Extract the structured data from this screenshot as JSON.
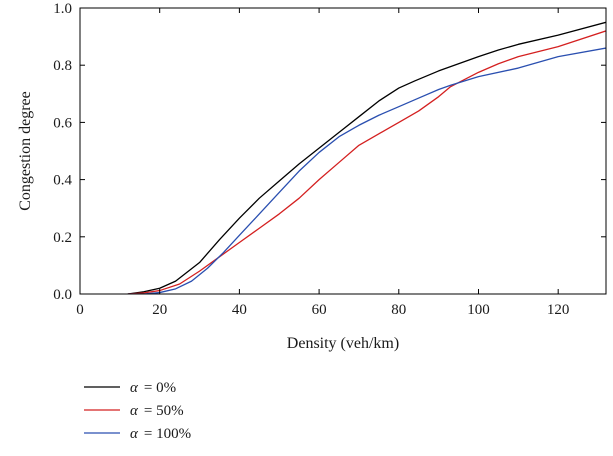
{
  "chart_data": {
    "type": "line",
    "title": "",
    "xlabel": "Density (veh/km)",
    "ylabel": "Congestion degree",
    "xlim": [
      0,
      132
    ],
    "ylim": [
      0,
      1.0
    ],
    "x_ticks": [
      0,
      20,
      40,
      60,
      80,
      100,
      120
    ],
    "y_ticks": [
      0.0,
      0.2,
      0.4,
      0.6,
      0.8,
      1.0
    ],
    "x_tick_labels": [
      "0",
      "20",
      "40",
      "60",
      "80",
      "100",
      "120"
    ],
    "y_tick_labels": [
      "0.0",
      "0.2",
      "0.4",
      "0.6",
      "0.8",
      "1.0"
    ],
    "grid": false,
    "legend_position": "bottom-left, below plot",
    "series": [
      {
        "name": "α = 0%",
        "legend_symbol": "α",
        "legend_value": "= 0%",
        "color": "#000000",
        "x": [
          12,
          16,
          20,
          24,
          30,
          35,
          40,
          45,
          50,
          55,
          60,
          65,
          70,
          75,
          80,
          84,
          90,
          95,
          100,
          105,
          110,
          120,
          132
        ],
        "y": [
          0.0,
          0.008,
          0.02,
          0.045,
          0.11,
          0.19,
          0.265,
          0.335,
          0.395,
          0.455,
          0.51,
          0.565,
          0.62,
          0.675,
          0.72,
          0.745,
          0.78,
          0.805,
          0.83,
          0.853,
          0.873,
          0.905,
          0.95
        ]
      },
      {
        "name": "α = 50%",
        "legend_symbol": "α",
        "legend_value": "= 50%",
        "color": "#d42020",
        "x": [
          12,
          16,
          20,
          25,
          30,
          35,
          40,
          45,
          50,
          55,
          60,
          65,
          70,
          75,
          80,
          85,
          90,
          93,
          100,
          105,
          110,
          120,
          132
        ],
        "y": [
          0.0,
          0.004,
          0.012,
          0.035,
          0.08,
          0.13,
          0.18,
          0.23,
          0.28,
          0.335,
          0.4,
          0.46,
          0.52,
          0.56,
          0.6,
          0.64,
          0.69,
          0.725,
          0.775,
          0.805,
          0.83,
          0.865,
          0.92
        ]
      },
      {
        "name": "α = 100%",
        "legend_symbol": "α",
        "legend_value": "= 100%",
        "color": "#2a4fb0",
        "x": [
          12,
          16,
          20,
          24,
          28,
          32,
          36,
          40,
          45,
          50,
          55,
          60,
          65,
          70,
          75,
          80,
          85,
          90,
          93,
          100,
          110,
          120,
          132
        ],
        "y": [
          0.0,
          0.0,
          0.005,
          0.018,
          0.045,
          0.09,
          0.145,
          0.205,
          0.28,
          0.355,
          0.43,
          0.495,
          0.55,
          0.59,
          0.625,
          0.655,
          0.685,
          0.715,
          0.73,
          0.76,
          0.79,
          0.83,
          0.86
        ]
      }
    ]
  }
}
